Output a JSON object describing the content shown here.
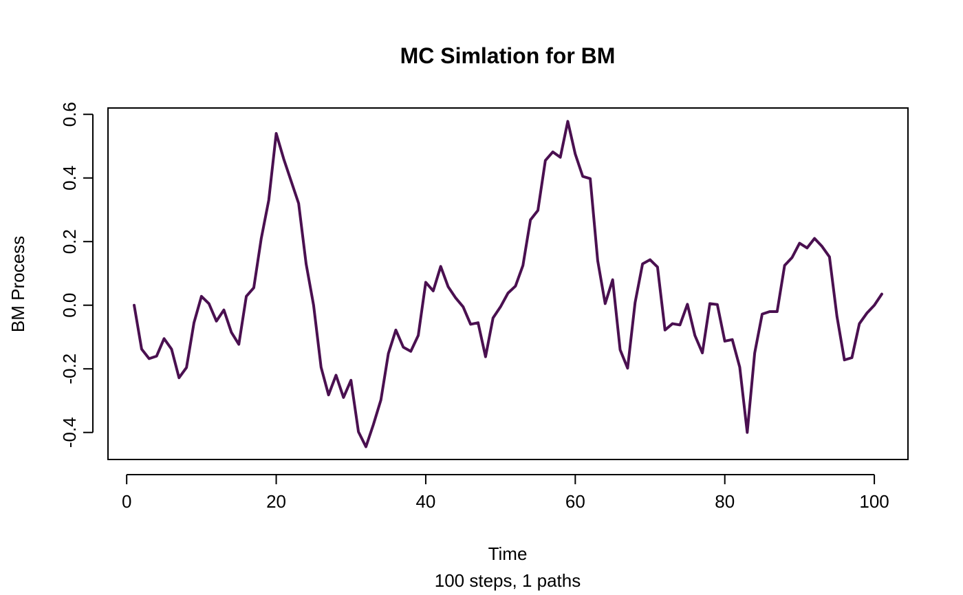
{
  "chart_data": {
    "type": "line",
    "title": "MC Simlation for BM",
    "xlabel": "Time",
    "subtitle": "100 steps, 1 paths",
    "ylabel": "BM Process",
    "xlim": [
      -2.5,
      104.5
    ],
    "ylim": [
      -0.485,
      0.62
    ],
    "xticks": [
      0,
      20,
      40,
      60,
      80,
      100
    ],
    "xtick_labels": [
      "0",
      "20",
      "40",
      "60",
      "80",
      "100"
    ],
    "yticks": [
      -0.4,
      -0.2,
      0.0,
      0.2,
      0.4,
      0.6
    ],
    "ytick_labels": [
      "-0.4",
      "-0.2",
      "0.0",
      "0.2",
      "0.4",
      "0.6"
    ],
    "grid": false,
    "series": [
      {
        "color": "#4a1050",
        "x": [
          1,
          2,
          3,
          4,
          5,
          6,
          7,
          8,
          9,
          10,
          11,
          12,
          13,
          14,
          15,
          16,
          17,
          18,
          19,
          20,
          21,
          22,
          23,
          24,
          25,
          26,
          27,
          28,
          29,
          30,
          31,
          32,
          33,
          34,
          35,
          36,
          37,
          38,
          39,
          40,
          41,
          42,
          43,
          44,
          45,
          46,
          47,
          48,
          49,
          50,
          51,
          52,
          53,
          54,
          55,
          56,
          57,
          58,
          59,
          60,
          61,
          62,
          63,
          64,
          65,
          66,
          67,
          68,
          69,
          70,
          71,
          72,
          73,
          74,
          75,
          76,
          77,
          78,
          79,
          80,
          81,
          82,
          83,
          84,
          85,
          86,
          87,
          88,
          89,
          90,
          91,
          92,
          93,
          94,
          95,
          96,
          97,
          98,
          99,
          100,
          101
        ],
        "values": [
          0.0,
          -0.138,
          -0.168,
          -0.16,
          -0.105,
          -0.138,
          -0.228,
          -0.196,
          -0.055,
          0.028,
          0.005,
          -0.05,
          -0.015,
          -0.085,
          -0.123,
          0.028,
          0.055,
          0.21,
          0.33,
          0.54,
          0.46,
          0.39,
          0.32,
          0.13,
          0.0,
          -0.195,
          -0.282,
          -0.22,
          -0.29,
          -0.236,
          -0.398,
          -0.445,
          -0.375,
          -0.298,
          -0.152,
          -0.078,
          -0.132,
          -0.145,
          -0.095,
          0.072,
          0.045,
          0.122,
          0.058,
          0.023,
          -0.005,
          -0.06,
          -0.055,
          -0.162,
          -0.04,
          -0.005,
          0.038,
          0.06,
          0.125,
          0.268,
          0.298,
          0.455,
          0.482,
          0.465,
          0.578,
          0.475,
          0.405,
          0.398,
          0.14,
          0.005,
          0.08,
          -0.14,
          -0.198,
          0.008,
          0.13,
          0.143,
          0.12,
          -0.078,
          -0.058,
          -0.062,
          0.003,
          -0.095,
          -0.15,
          0.005,
          0.002,
          -0.113,
          -0.108,
          -0.195,
          -0.4,
          -0.15,
          -0.028,
          -0.02,
          -0.02,
          0.125,
          0.15,
          0.195,
          0.18,
          0.21,
          0.185,
          0.152,
          -0.035,
          -0.172,
          -0.165,
          -0.058,
          -0.025,
          0.0,
          0.035
        ]
      }
    ]
  }
}
